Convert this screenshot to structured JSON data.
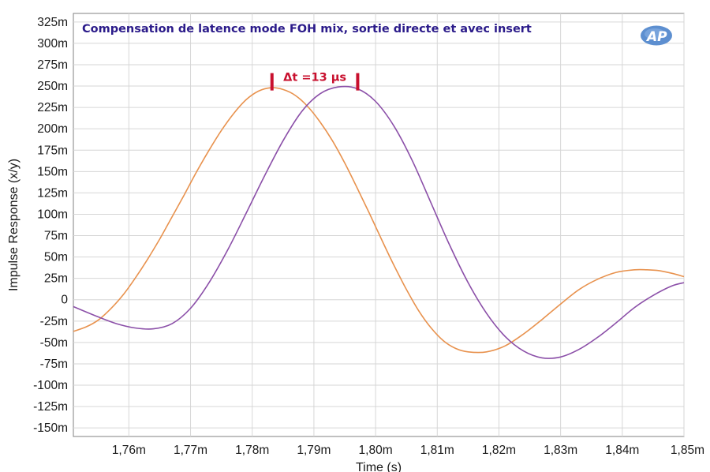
{
  "chart_data": {
    "type": "line",
    "title": "Compensation de latence mode FOH mix, sortie directe et avec insert",
    "xlabel": "Time (s)",
    "ylabel": "Impulse Response (x/y)",
    "xlim": [
      1.751,
      1.85
    ],
    "ylim": [
      -160,
      335
    ],
    "xticks": [
      1.76,
      1.77,
      1.78,
      1.79,
      1.8,
      1.81,
      1.82,
      1.83,
      1.84,
      1.85
    ],
    "xtick_labels": [
      "1,76m",
      "1,77m",
      "1,78m",
      "1,79m",
      "1,80m",
      "1,81m",
      "1,82m",
      "1,83m",
      "1,84m",
      "1,85m"
    ],
    "yticks": [
      325,
      300,
      275,
      250,
      225,
      200,
      175,
      150,
      125,
      100,
      75,
      50,
      25,
      0,
      -25,
      -50,
      -75,
      -100,
      -125,
      -150
    ],
    "ytick_labels": [
      "325m",
      "300m",
      "275m",
      "250m",
      "225m",
      "200m",
      "175m",
      "150m",
      "125m",
      "100m",
      "75m",
      "50m",
      "25m",
      "0",
      "-25m",
      "-50m",
      "-75m",
      "-100m",
      "-125m",
      "-150m"
    ],
    "grid": true,
    "series": [
      {
        "color": "#e8924e",
        "x": [
          1.751,
          1.753,
          1.755,
          1.757,
          1.759,
          1.761,
          1.763,
          1.765,
          1.767,
          1.769,
          1.771,
          1.773,
          1.775,
          1.777,
          1.779,
          1.781,
          1.783,
          1.785,
          1.787,
          1.789,
          1.791,
          1.793,
          1.795,
          1.797,
          1.799,
          1.801,
          1.803,
          1.805,
          1.807,
          1.809,
          1.811,
          1.813,
          1.815,
          1.818,
          1.821,
          1.824,
          1.827,
          1.83,
          1.833,
          1.836,
          1.839,
          1.842,
          1.844,
          1.846,
          1.848,
          1.85
        ],
        "y": [
          -37,
          -32,
          -24,
          -11,
          5,
          25,
          47,
          71,
          97,
          123,
          150,
          175,
          198,
          218,
          234,
          244,
          248,
          246,
          239,
          226,
          208,
          186,
          160,
          131,
          101,
          70,
          40,
          12,
          -13,
          -33,
          -48,
          -57,
          -61,
          -61,
          -54,
          -40,
          -23,
          -5,
          12,
          24,
          32,
          35,
          35,
          34,
          31,
          27
        ]
      },
      {
        "color": "#8b4fa8",
        "x": [
          1.751,
          1.755,
          1.758,
          1.761,
          1.764,
          1.767,
          1.77,
          1.773,
          1.776,
          1.779,
          1.782,
          1.785,
          1.788,
          1.791,
          1.794,
          1.797,
          1.8,
          1.803,
          1.806,
          1.809,
          1.812,
          1.815,
          1.818,
          1.821,
          1.824,
          1.827,
          1.83,
          1.833,
          1.836,
          1.839,
          1.842,
          1.845,
          1.848,
          1.85
        ],
        "y": [
          -8,
          -20,
          -28,
          -33,
          -34,
          -28,
          -10,
          20,
          58,
          101,
          145,
          186,
          220,
          241,
          249,
          247,
          232,
          203,
          162,
          113,
          64,
          20,
          -16,
          -43,
          -60,
          -68,
          -67,
          -58,
          -44,
          -27,
          -9,
          5,
          16,
          20
        ]
      }
    ],
    "annotations": [
      {
        "text": "Δt =13 µs",
        "marker_x": [
          1.7832,
          1.7971
        ],
        "marker_y": 255
      }
    ],
    "logo": "AP"
  }
}
